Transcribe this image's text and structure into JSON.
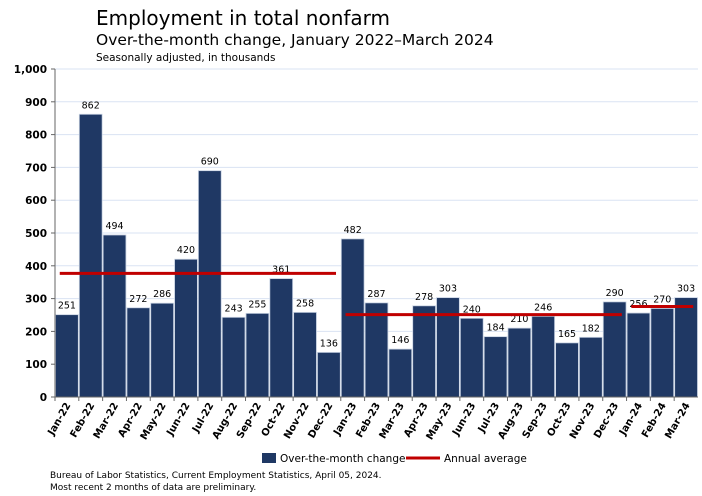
{
  "chart_data": {
    "type": "bar",
    "title": "Employment in total nonfarm",
    "subtitle": "Over-the-month change, January 2022–March 2024",
    "note": "Seasonally adjusted, in thousands",
    "categories": [
      "Jan-22",
      "Feb-22",
      "Mar-22",
      "Apr-22",
      "May-22",
      "Jun-22",
      "Jul-22",
      "Aug-22",
      "Sep-22",
      "Oct-22",
      "Nov-22",
      "Dec-22",
      "Jan-23",
      "Feb-23",
      "Mar-23",
      "Apr-23",
      "May-23",
      "Jun-23",
      "Jul-23",
      "Aug-23",
      "Sep-23",
      "Oct-23",
      "Nov-23",
      "Dec-23",
      "Jan-24",
      "Feb-24",
      "Mar-24"
    ],
    "series": [
      {
        "name": "Over-the-month change",
        "color": "#1f3864",
        "values": [
          251,
          862,
          494,
          272,
          286,
          420,
          690,
          243,
          255,
          361,
          258,
          136,
          482,
          287,
          146,
          278,
          303,
          240,
          184,
          210,
          246,
          165,
          182,
          290,
          256,
          270,
          303
        ]
      }
    ],
    "annual_average": {
      "name": "Annual average",
      "color": "#c00000",
      "segments": [
        {
          "from": "Jan-22",
          "to": "Dec-22",
          "value": 377
        },
        {
          "from": "Jan-23",
          "to": "Dec-23",
          "value": 251
        },
        {
          "from": "Jan-24",
          "to": "Mar-24",
          "value": 276
        }
      ]
    },
    "ylim": [
      0,
      1000
    ],
    "yticks": [
      "0",
      "100",
      "200",
      "300",
      "400",
      "500",
      "600",
      "700",
      "800",
      "900",
      "1,000"
    ],
    "grid": true,
    "legend": "bottom"
  },
  "footer": {
    "source": "Bureau of Labor Statistics, Current Employment Statistics, April 05, 2024.",
    "preliminary": "Most recent 2 months of data are preliminary."
  }
}
